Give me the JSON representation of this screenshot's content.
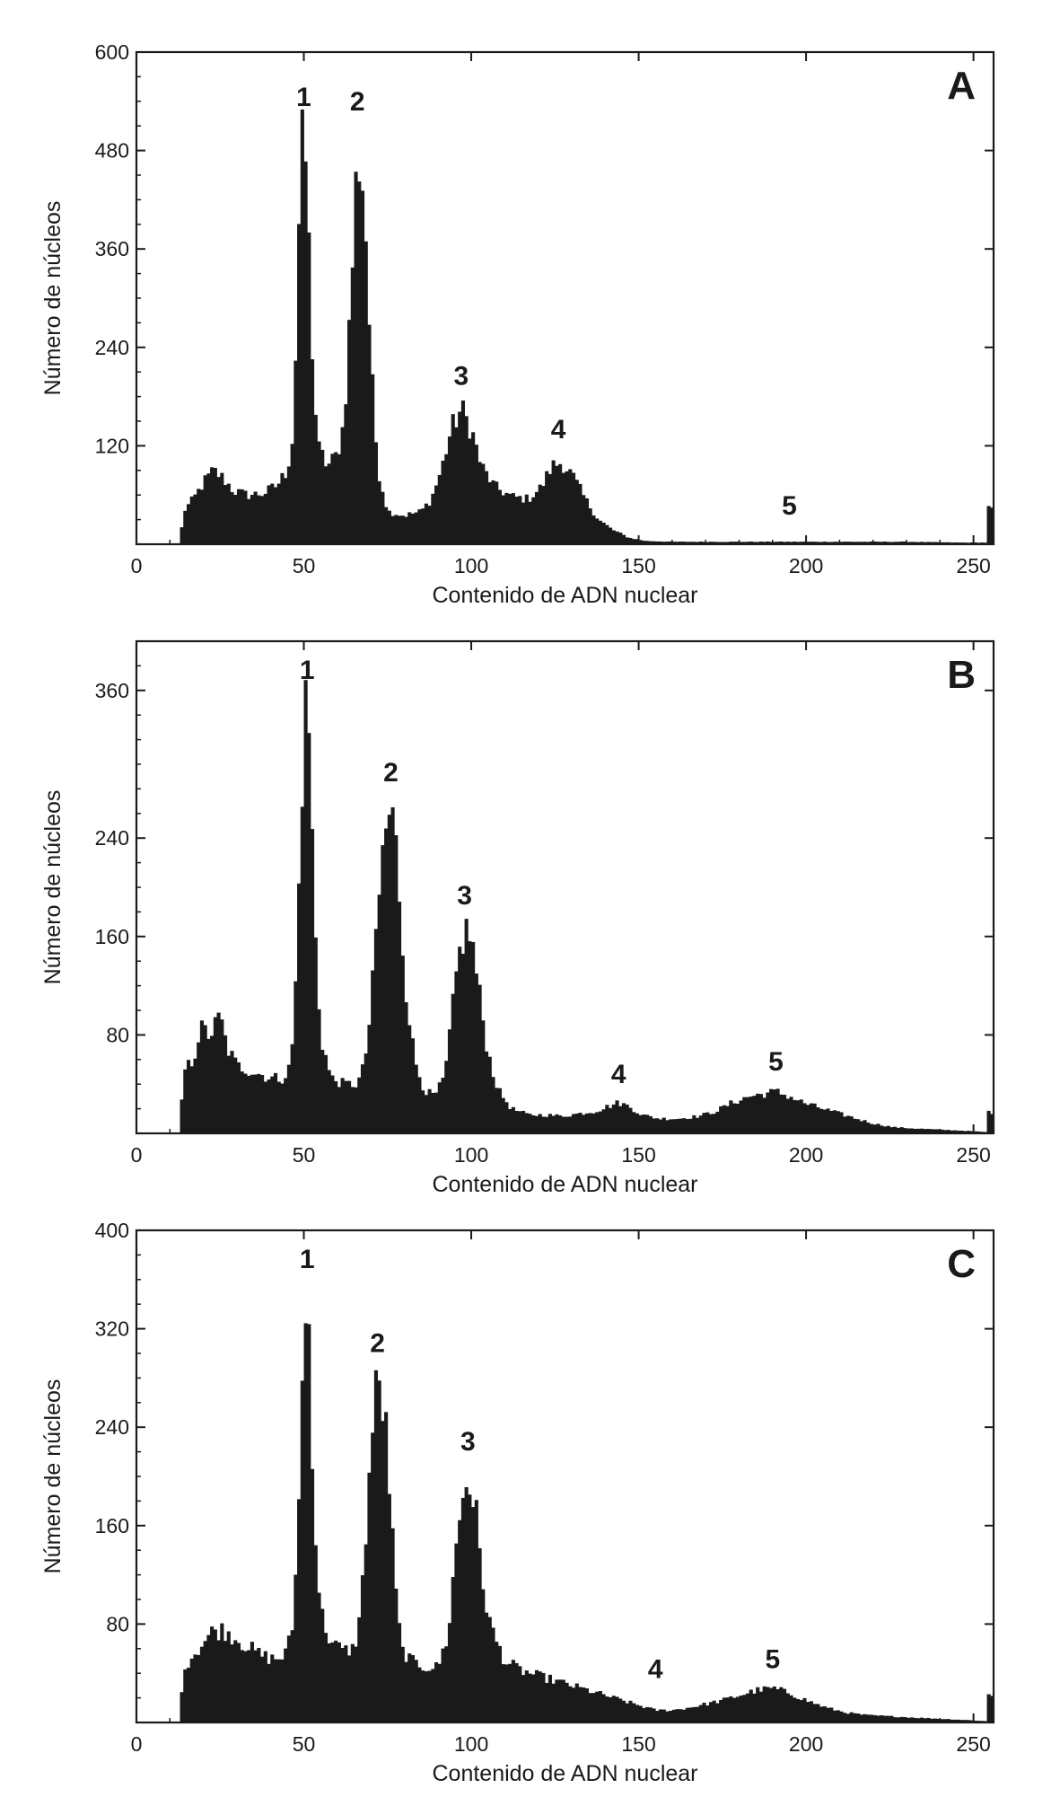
{
  "chart_data": [
    {
      "type": "bar",
      "panel": "A",
      "xlabel": "Contenido de ADN nuclear",
      "ylabel": "Número de núcleos",
      "xlim": [
        0,
        256
      ],
      "ylim": [
        0,
        600
      ],
      "xticks": [
        0,
        50,
        100,
        150,
        200,
        250
      ],
      "yticks": [
        120,
        240,
        360,
        480,
        600
      ],
      "bar_color": "#1a1a1a",
      "peaks": [
        {
          "label": "1",
          "x": 50,
          "y": 510
        },
        {
          "label": "2",
          "x": 66,
          "y": 505
        },
        {
          "label": "3",
          "x": 97,
          "y": 170
        },
        {
          "label": "4",
          "x": 126,
          "y": 105
        },
        {
          "label": "5",
          "x": 195,
          "y": 12
        }
      ],
      "baseline": [
        [
          13,
          0
        ],
        [
          14,
          40
        ],
        [
          17,
          55
        ],
        [
          20,
          75
        ],
        [
          23,
          90
        ],
        [
          26,
          80
        ],
        [
          29,
          65
        ],
        [
          33,
          60
        ],
        [
          38,
          62
        ],
        [
          42,
          72
        ],
        [
          45,
          90
        ],
        [
          47,
          140
        ],
        [
          48,
          320
        ],
        [
          49,
          460
        ],
        [
          50,
          500
        ],
        [
          51,
          440
        ],
        [
          52,
          280
        ],
        [
          54,
          120
        ],
        [
          57,
          95
        ],
        [
          60,
          110
        ],
        [
          62,
          150
        ],
        [
          64,
          300
        ],
        [
          66,
          480
        ],
        [
          68,
          430
        ],
        [
          70,
          220
        ],
        [
          72,
          95
        ],
        [
          75,
          40
        ],
        [
          80,
          35
        ],
        [
          85,
          40
        ],
        [
          88,
          55
        ],
        [
          91,
          90
        ],
        [
          94,
          140
        ],
        [
          97,
          165
        ],
        [
          100,
          140
        ],
        [
          103,
          95
        ],
        [
          107,
          70
        ],
        [
          112,
          58
        ],
        [
          117,
          55
        ],
        [
          121,
          70
        ],
        [
          124,
          95
        ],
        [
          127,
          100
        ],
        [
          130,
          85
        ],
        [
          134,
          55
        ],
        [
          138,
          30
        ],
        [
          142,
          18
        ],
        [
          147,
          8
        ],
        [
          152,
          4
        ],
        [
          160,
          3
        ],
        [
          175,
          3
        ],
        [
          195,
          3
        ],
        [
          215,
          3
        ],
        [
          230,
          3
        ],
        [
          245,
          2
        ],
        [
          254,
          2
        ],
        [
          255,
          85
        ],
        [
          256,
          0
        ]
      ]
    },
    {
      "type": "bar",
      "panel": "B",
      "xlabel": "Contenido de ADN nuclear",
      "ylabel": "Número de núcleos",
      "xlim": [
        0,
        256
      ],
      "ylim": [
        0,
        400
      ],
      "xticks": [
        0,
        50,
        100,
        150,
        200,
        250
      ],
      "yticks": [
        80,
        160,
        240,
        360
      ],
      "bar_color": "#1a1a1a",
      "peaks": [
        {
          "label": "1",
          "x": 51,
          "y": 365
        },
        {
          "label": "2",
          "x": 76,
          "y": 270
        },
        {
          "label": "3",
          "x": 98,
          "y": 170
        },
        {
          "label": "4",
          "x": 144,
          "y": 25
        },
        {
          "label": "5",
          "x": 191,
          "y": 35
        }
      ],
      "baseline": [
        [
          13,
          0
        ],
        [
          14,
          50
        ],
        [
          17,
          60
        ],
        [
          19,
          85
        ],
        [
          22,
          80
        ],
        [
          25,
          95
        ],
        [
          27,
          70
        ],
        [
          30,
          55
        ],
        [
          35,
          50
        ],
        [
          40,
          45
        ],
        [
          44,
          45
        ],
        [
          46,
          55
        ],
        [
          47,
          90
        ],
        [
          48,
          150
        ],
        [
          49,
          250
        ],
        [
          50,
          330
        ],
        [
          51,
          360
        ],
        [
          52,
          300
        ],
        [
          53,
          180
        ],
        [
          55,
          80
        ],
        [
          58,
          45
        ],
        [
          62,
          40
        ],
        [
          66,
          40
        ],
        [
          68,
          55
        ],
        [
          70,
          100
        ],
        [
          72,
          180
        ],
        [
          74,
          240
        ],
        [
          76,
          265
        ],
        [
          78,
          220
        ],
        [
          80,
          130
        ],
        [
          83,
          60
        ],
        [
          86,
          35
        ],
        [
          89,
          30
        ],
        [
          92,
          45
        ],
        [
          94,
          90
        ],
        [
          96,
          140
        ],
        [
          98,
          165
        ],
        [
          100,
          160
        ],
        [
          102,
          120
        ],
        [
          105,
          65
        ],
        [
          108,
          35
        ],
        [
          112,
          20
        ],
        [
          117,
          15
        ],
        [
          122,
          15
        ],
        [
          127,
          14
        ],
        [
          132,
          16
        ],
        [
          137,
          18
        ],
        [
          141,
          22
        ],
        [
          144,
          25
        ],
        [
          147,
          22
        ],
        [
          151,
          15
        ],
        [
          156,
          12
        ],
        [
          162,
          12
        ],
        [
          168,
          14
        ],
        [
          173,
          18
        ],
        [
          178,
          25
        ],
        [
          183,
          30
        ],
        [
          187,
          32
        ],
        [
          191,
          34
        ],
        [
          195,
          30
        ],
        [
          200,
          24
        ],
        [
          205,
          20
        ],
        [
          210,
          16
        ],
        [
          215,
          12
        ],
        [
          220,
          8
        ],
        [
          226,
          5
        ],
        [
          232,
          4
        ],
        [
          240,
          3
        ],
        [
          248,
          2
        ],
        [
          254,
          1
        ],
        [
          255,
          35
        ],
        [
          256,
          0
        ]
      ]
    },
    {
      "type": "bar",
      "panel": "C",
      "xlabel": "Contenido de ADN nuclear",
      "ylabel": "Número de núcleos",
      "xlim": [
        0,
        256
      ],
      "ylim": [
        0,
        400
      ],
      "xticks": [
        0,
        50,
        100,
        150,
        200,
        250
      ],
      "yticks": [
        80,
        160,
        240,
        320,
        400
      ],
      "bar_color": "#1a1a1a",
      "peaks": [
        {
          "label": "1",
          "x": 51,
          "y": 370
        },
        {
          "label": "2",
          "x": 72,
          "y": 285
        },
        {
          "label": "3",
          "x": 99,
          "y": 205
        },
        {
          "label": "4",
          "x": 155,
          "y": 20
        },
        {
          "label": "5",
          "x": 190,
          "y": 28
        }
      ],
      "baseline": [
        [
          13,
          0
        ],
        [
          14,
          45
        ],
        [
          17,
          55
        ],
        [
          20,
          65
        ],
        [
          23,
          75
        ],
        [
          26,
          75
        ],
        [
          29,
          70
        ],
        [
          33,
          62
        ],
        [
          37,
          55
        ],
        [
          40,
          52
        ],
        [
          43,
          52
        ],
        [
          45,
          58
        ],
        [
          47,
          85
        ],
        [
          48,
          150
        ],
        [
          49,
          240
        ],
        [
          50,
          300
        ],
        [
          51,
          350
        ],
        [
          52,
          290
        ],
        [
          53,
          170
        ],
        [
          55,
          90
        ],
        [
          58,
          65
        ],
        [
          62,
          58
        ],
        [
          65,
          60
        ],
        [
          67,
          90
        ],
        [
          69,
          180
        ],
        [
          71,
          260
        ],
        [
          73,
          275
        ],
        [
          75,
          220
        ],
        [
          77,
          120
        ],
        [
          79,
          60
        ],
        [
          82,
          50
        ],
        [
          86,
          45
        ],
        [
          90,
          45
        ],
        [
          93,
          70
        ],
        [
          95,
          130
        ],
        [
          97,
          180
        ],
        [
          99,
          200
        ],
        [
          101,
          180
        ],
        [
          103,
          120
        ],
        [
          106,
          75
        ],
        [
          110,
          50
        ],
        [
          115,
          42
        ],
        [
          120,
          38
        ],
        [
          125,
          34
        ],
        [
          130,
          30
        ],
        [
          135,
          26
        ],
        [
          140,
          22
        ],
        [
          145,
          18
        ],
        [
          150,
          14
        ],
        [
          155,
          10
        ],
        [
          160,
          10
        ],
        [
          165,
          12
        ],
        [
          170,
          15
        ],
        [
          175,
          18
        ],
        [
          180,
          22
        ],
        [
          185,
          26
        ],
        [
          190,
          28
        ],
        [
          195,
          24
        ],
        [
          200,
          18
        ],
        [
          206,
          12
        ],
        [
          212,
          8
        ],
        [
          218,
          6
        ],
        [
          225,
          5
        ],
        [
          232,
          4
        ],
        [
          240,
          3
        ],
        [
          248,
          2
        ],
        [
          254,
          1
        ],
        [
          255,
          45
        ],
        [
          256,
          0
        ]
      ]
    }
  ]
}
